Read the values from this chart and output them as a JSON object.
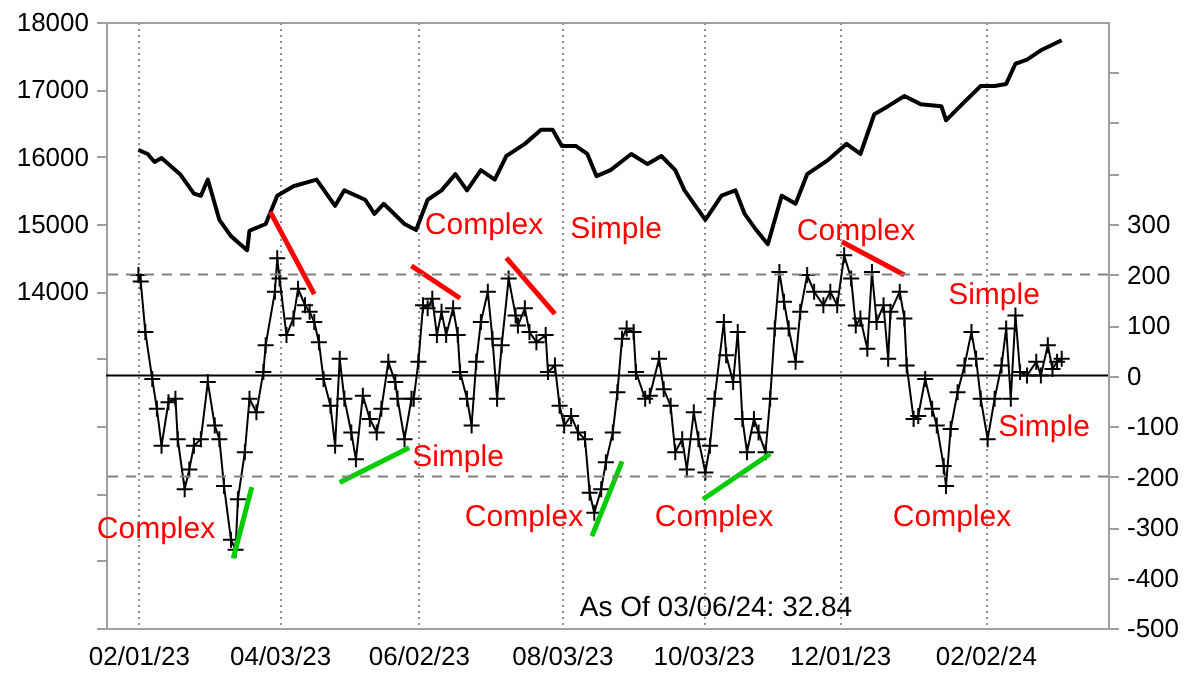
{
  "chart_data": {
    "type": "line",
    "xlim": [
      "2023-01-18",
      "2024-03-26"
    ],
    "xticks": [
      {
        "value": "2023-02-01",
        "label": "02/01/23"
      },
      {
        "value": "2023-04-03",
        "label": "04/03/23"
      },
      {
        "value": "2023-06-02",
        "label": "06/02/23"
      },
      {
        "value": "2023-08-03",
        "label": "08/03/23"
      },
      {
        "value": "2023-10-03",
        "label": "10/03/23"
      },
      {
        "value": "2023-12-01",
        "label": "12/01/23"
      },
      {
        "value": "2024-02-02",
        "label": "02/02/24"
      }
    ],
    "ylim": [
      9000,
      18000
    ],
    "yticks": [
      {
        "value": 9000,
        "label": null
      },
      {
        "value": 10000,
        "label": null
      },
      {
        "value": 11000,
        "label": null
      },
      {
        "value": 12000,
        "label": null
      },
      {
        "value": 13000,
        "label": null
      },
      14000,
      15000,
      16000,
      17000,
      18000
    ],
    "y2lim": [
      -500,
      700
    ],
    "y2ticks": [
      -500,
      -400,
      -300,
      -200,
      -100,
      0,
      100,
      200,
      300,
      {
        "value": 400,
        "label": null
      },
      {
        "value": 500,
        "label": null
      },
      {
        "value": 600,
        "label": null
      }
    ],
    "grid": "x",
    "series": [
      {
        "type": "line",
        "color": "#000000",
        "axis": "y",
        "x": [
          "2023-02-01",
          "2023-02-05",
          "2023-02-08",
          "2023-02-11",
          "2023-02-19",
          "2023-02-25",
          "2023-02-28",
          "2023-03-03",
          "2023-03-08",
          "2023-03-13",
          "2023-03-17",
          "2023-03-20",
          "2023-03-21",
          "2023-03-28",
          "2023-04-02",
          "2023-04-09",
          "2023-04-19",
          "2023-04-27",
          "2023-05-01",
          "2023-05-10",
          "2023-05-14",
          "2023-05-18",
          "2023-05-27",
          "2023-06-01",
          "2023-06-06",
          "2023-06-12",
          "2023-06-18",
          "2023-06-23",
          "2023-06-29",
          "2023-07-05",
          "2023-07-10",
          "2023-07-18",
          "2023-07-25",
          "2023-07-30",
          "2023-08-03",
          "2023-08-09",
          "2023-08-14",
          "2023-08-18",
          "2023-08-24",
          "2023-09-02",
          "2023-09-09",
          "2023-09-15",
          "2023-09-21",
          "2023-09-25",
          "2023-10-04",
          "2023-10-11",
          "2023-10-17",
          "2023-10-21",
          "2023-10-26",
          "2023-10-31",
          "2023-11-06",
          "2023-11-12",
          "2023-11-17",
          "2023-11-26",
          "2023-12-04",
          "2023-12-10",
          "2023-12-16",
          "2023-12-22",
          "2023-12-29",
          "2024-01-05",
          "2024-01-14",
          "2024-01-16",
          "2024-01-23",
          "2024-01-31",
          "2024-02-06",
          "2024-02-11",
          "2024-02-15",
          "2024-02-20",
          "2024-02-26",
          "2024-03-06"
        ],
        "values": [
          16100,
          16040,
          15920,
          15980,
          15740,
          15450,
          15420,
          15660,
          15060,
          14820,
          14700,
          14610,
          14900,
          15000,
          15420,
          15560,
          15660,
          15270,
          15500,
          15360,
          15150,
          15300,
          15000,
          14910,
          15360,
          15500,
          15740,
          15500,
          15800,
          15660,
          16010,
          16190,
          16400,
          16400,
          16160,
          16160,
          16040,
          15710,
          15800,
          16040,
          15890,
          16010,
          15800,
          15500,
          15060,
          15420,
          15500,
          15150,
          14910,
          14700,
          15420,
          15300,
          15740,
          15950,
          16190,
          16040,
          16630,
          16750,
          16900,
          16780,
          16750,
          16540,
          16780,
          17050,
          17050,
          17080,
          17380,
          17440,
          17580,
          17730
        ]
      },
      {
        "type": "line",
        "color": "#000000",
        "axis": "y2",
        "marker": "cross",
        "x": [
          "2023-02-01",
          "2023-02-02",
          "2023-02-04",
          "2023-02-07",
          "2023-02-09",
          "2023-02-11",
          "2023-02-14",
          "2023-02-17",
          "2023-02-18",
          "2023-02-21",
          "2023-02-23",
          "2023-02-25",
          "2023-02-28",
          "2023-03-03",
          "2023-03-06",
          "2023-03-08",
          "2023-03-10",
          "2023-03-13",
          "2023-03-15",
          "2023-03-16",
          "2023-03-19",
          "2023-03-21",
          "2023-03-24",
          "2023-03-27",
          "2023-03-28",
          "2023-04-01",
          "2023-04-02",
          "2023-04-03",
          "2023-04-06",
          "2023-04-09",
          "2023-04-11",
          "2023-04-14",
          "2023-04-16",
          "2023-04-18",
          "2023-04-20",
          "2023-04-22",
          "2023-04-25",
          "2023-04-27",
          "2023-04-29",
          "2023-05-01",
          "2023-05-04",
          "2023-05-06",
          "2023-05-09",
          "2023-05-12",
          "2023-05-15",
          "2023-05-17",
          "2023-05-20",
          "2023-05-23",
          "2023-05-24",
          "2023-05-27",
          "2023-05-30",
          "2023-05-31",
          "2023-06-02",
          "2023-06-04",
          "2023-06-06",
          "2023-06-08",
          "2023-06-10",
          "2023-06-12",
          "2023-06-14",
          "2023-06-17",
          "2023-06-19",
          "2023-06-20",
          "2023-06-23",
          "2023-06-25",
          "2023-06-27",
          "2023-06-29",
          "2023-07-02",
          "2023-07-04",
          "2023-07-06",
          "2023-07-08",
          "2023-07-11",
          "2023-07-14",
          "2023-07-15",
          "2023-07-18",
          "2023-07-20",
          "2023-07-23",
          "2023-07-27",
          "2023-07-28",
          "2023-07-31",
          "2023-08-02",
          "2023-08-04",
          "2023-08-07",
          "2023-08-10",
          "2023-08-13",
          "2023-08-15",
          "2023-08-17",
          "2023-08-20",
          "2023-08-22",
          "2023-08-25",
          "2023-08-27",
          "2023-08-29",
          "2023-08-31",
          "2023-09-03",
          "2023-09-04",
          "2023-09-08",
          "2023-09-10",
          "2023-09-14",
          "2023-09-16",
          "2023-09-19",
          "2023-09-21",
          "2023-09-24",
          "2023-09-26",
          "2023-09-29",
          "2023-10-01",
          "2023-10-04",
          "2023-10-06",
          "2023-10-08",
          "2023-10-12",
          "2023-10-13",
          "2023-10-16",
          "2023-10-18",
          "2023-10-20",
          "2023-10-22",
          "2023-10-25",
          "2023-10-27",
          "2023-10-30",
          "2023-11-01",
          "2023-11-03",
          "2023-11-05",
          "2023-11-07",
          "2023-11-09",
          "2023-11-12",
          "2023-11-14",
          "2023-11-17",
          "2023-11-20",
          "2023-11-24",
          "2023-11-27",
          "2023-11-30",
          "2023-12-03",
          "2023-12-06",
          "2023-12-08",
          "2023-12-10",
          "2023-12-13",
          "2023-12-15",
          "2023-12-17",
          "2023-12-20",
          "2023-12-22",
          "2023-12-23",
          "2023-12-27",
          "2023-12-29",
          "2023-12-30",
          "2024-01-02",
          "2024-01-04",
          "2024-01-07",
          "2024-01-10",
          "2024-01-12",
          "2024-01-15",
          "2024-01-16",
          "2024-01-18",
          "2024-01-21",
          "2024-01-24",
          "2024-01-27",
          "2024-01-29",
          "2024-01-31",
          "2024-02-03",
          "2024-02-06",
          "2024-02-09",
          "2024-02-11",
          "2024-02-13",
          "2024-02-15",
          "2024-02-17",
          "2024-02-20",
          "2024-02-24",
          "2024-02-26",
          "2024-02-29",
          "2024-03-02",
          "2024-03-04",
          "2024-03-06"
        ],
        "values": [
          199,
          186,
          86,
          -7,
          -66,
          -139,
          -53,
          -46,
          -126,
          -225,
          -186,
          -139,
          -126,
          -13,
          -99,
          -126,
          -219,
          -325,
          -345,
          -245,
          -152,
          -46,
          -73,
          7,
          60,
          166,
          232,
          192,
          80,
          113,
          172,
          139,
          126,
          106,
          66,
          -7,
          -60,
          -139,
          33,
          -46,
          -113,
          -166,
          -40,
          -86,
          -113,
          -66,
          27,
          -13,
          -46,
          -126,
          -46,
          -46,
          27,
          139,
          133,
          152,
          80,
          126,
          80,
          133,
          80,
          7,
          -46,
          -99,
          27,
          106,
          166,
          73,
          -46,
          60,
          192,
          119,
          99,
          133,
          86,
          66,
          80,
          7,
          20,
          -60,
          -99,
          -80,
          -113,
          -126,
          -232,
          -272,
          -225,
          -172,
          -113,
          -33,
          73,
          93,
          86,
          7,
          -46,
          -40,
          33,
          -27,
          -60,
          -152,
          -126,
          -186,
          -73,
          -126,
          -192,
          -139,
          -46,
          106,
          40,
          -13,
          86,
          -86,
          -152,
          -86,
          -113,
          -152,
          -46,
          93,
          205,
          146,
          93,
          27,
          126,
          199,
          166,
          139,
          166,
          139,
          238,
          192,
          99,
          113,
          53,
          205,
          106,
          139,
          33,
          126,
          166,
          113,
          20,
          -86,
          -80,
          -7,
          -66,
          -99,
          -179,
          -219,
          -106,
          -33,
          20,
          86,
          33,
          -46,
          -126,
          -46,
          20,
          93,
          -46,
          119,
          7,
          0,
          27,
          0,
          60,
          13,
          27,
          33
        ]
      },
      {
        "type": "line",
        "color": "#ff0000",
        "axis": "y2",
        "x": [
          "2023-03-30",
          "2023-04-18"
        ],
        "values": [
          324,
          161
        ]
      },
      {
        "type": "line",
        "color": "#ff0000",
        "axis": "y2",
        "x": [
          "2023-05-30",
          "2023-06-20"
        ],
        "values": [
          217,
          153
        ]
      },
      {
        "type": "line",
        "color": "#ff0000",
        "axis": "y2",
        "x": [
          "2023-07-10",
          "2023-07-31"
        ],
        "values": [
          233,
          122
        ]
      },
      {
        "type": "line",
        "color": "#ff0000",
        "axis": "y2",
        "x": [
          "2023-12-02",
          "2023-12-29"
        ],
        "values": [
          265,
          199
        ]
      },
      {
        "type": "line",
        "color": "#00cc00",
        "axis": "y2",
        "x": [
          "2023-03-14",
          "2023-03-22"
        ],
        "values": [
          -362,
          -221
        ]
      },
      {
        "type": "line",
        "color": "#00cc00",
        "axis": "y2",
        "x": [
          "2023-04-29",
          "2023-05-29"
        ],
        "values": [
          -212,
          -143
        ]
      },
      {
        "type": "line",
        "color": "#00cc00",
        "axis": "y2",
        "x": [
          "2023-08-16",
          "2023-08-29"
        ],
        "values": [
          -318,
          -170
        ]
      },
      {
        "type": "line",
        "color": "#00cc00",
        "axis": "y2",
        "x": [
          "2023-10-03",
          "2023-11-01"
        ],
        "values": [
          -245,
          -155
        ]
      }
    ],
    "ref_lines": [
      {
        "axis": "y2",
        "value": 200,
        "color": "#808080",
        "line_style": "dashed"
      },
      {
        "axis": "y2",
        "value": 0,
        "color": "#000000",
        "line_style": "solid"
      },
      {
        "axis": "y2",
        "value": -200,
        "color": "#808080",
        "line_style": "dashed"
      }
    ],
    "annotations": [
      "Complex",
      "Simple",
      "Complex",
      "Simple",
      "Simple",
      "Simple",
      "Complex",
      "Complex",
      "Complex",
      "Complex",
      "As Of 03/06/24: 32.84"
    ]
  }
}
